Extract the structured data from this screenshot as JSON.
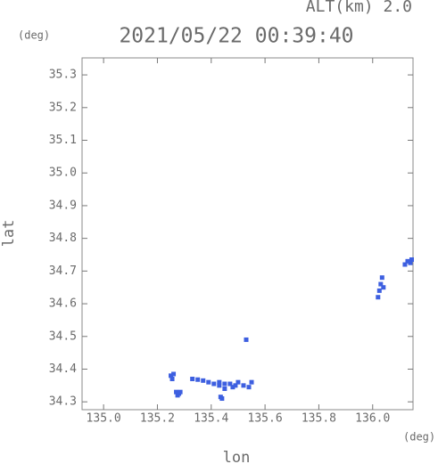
{
  "chart_data": {
    "type": "scatter",
    "title": "2021/05/22 00:39:40",
    "subtitle": "ALT(km) 2.0",
    "x_label": "lon",
    "y_label": "lat",
    "x_unit": "(deg)",
    "y_unit": "(deg)",
    "color": "#3d5fe0",
    "x": [
      135.25,
      135.255,
      135.26,
      135.27,
      135.275,
      135.28,
      135.285,
      135.33,
      135.35,
      135.37,
      135.39,
      135.41,
      135.43,
      135.43,
      135.45,
      135.45,
      135.47,
      135.48,
      135.49,
      135.5,
      135.52,
      135.54,
      135.55,
      135.44,
      135.435,
      135.53,
      136.02,
      136.025,
      136.03,
      136.035,
      136.04,
      136.12,
      136.13,
      136.14,
      136.145
    ],
    "values": [
      34.38,
      34.37,
      34.385,
      34.33,
      34.32,
      34.325,
      34.33,
      34.37,
      34.368,
      34.365,
      34.36,
      34.355,
      34.35,
      34.36,
      34.355,
      34.34,
      34.355,
      34.345,
      34.35,
      34.36,
      34.35,
      34.345,
      34.36,
      34.31,
      34.315,
      34.49,
      34.62,
      34.64,
      34.66,
      34.68,
      34.65,
      34.72,
      34.73,
      34.725,
      34.735
    ],
    "xlim": [
      134.92,
      136.15
    ],
    "ylim": [
      34.276,
      35.352
    ],
    "xticks": [
      {
        "value": 135,
        "label": "135.0"
      },
      135.2,
      135.4,
      135.6,
      135.8,
      {
        "value": 136,
        "label": "136.0"
      }
    ],
    "yticks": [
      34.3,
      34.4,
      34.5,
      34.6,
      34.7,
      34.8,
      34.9,
      {
        "value": 35,
        "label": "35.0"
      },
      35.1,
      35.2,
      35.3
    ]
  }
}
